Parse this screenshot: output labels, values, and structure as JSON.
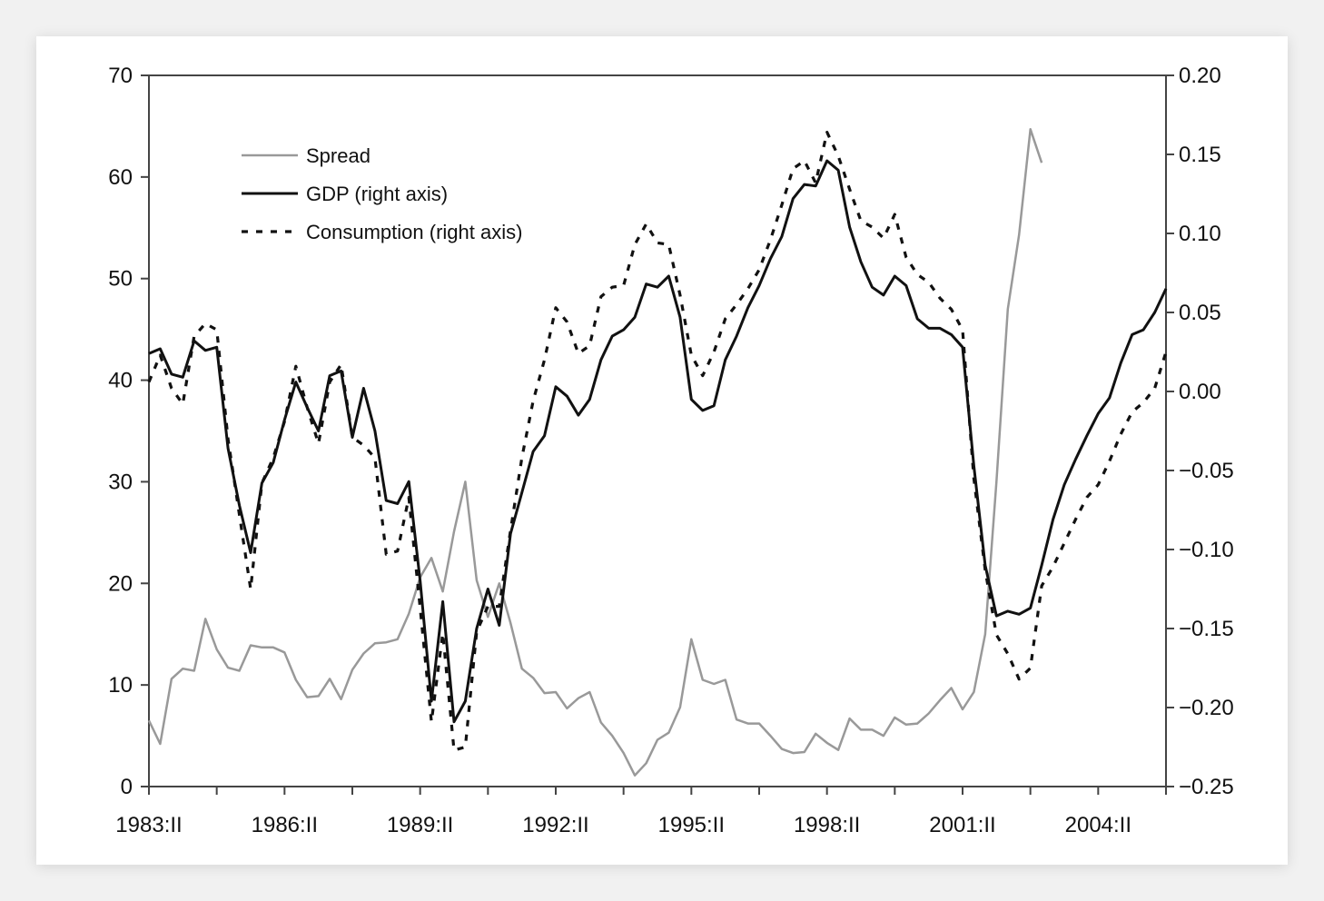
{
  "colors": {
    "spread": "#999999",
    "gdp": "#111111",
    "consumption": "#111111",
    "axis": "#444444",
    "background": "#ffffff"
  },
  "chart_data": {
    "type": "line",
    "title": "",
    "xlabel": "",
    "ylabel": "",
    "y2label": "",
    "grid": false,
    "legend_position": "top-left",
    "x_tick_labels": [
      "1983:II",
      "1986:II",
      "1989:II",
      "1992:II",
      "1995:II",
      "1998:II",
      "2001:II",
      "2004:II"
    ],
    "x_range": [
      "1983:II",
      "2005:IV"
    ],
    "ylim_left": [
      0,
      70
    ],
    "ylim_right": [
      -0.25,
      0.2
    ],
    "y_left_ticks": [
      "0",
      "10",
      "20",
      "30",
      "40",
      "50",
      "60",
      "70"
    ],
    "y_right_ticks": [
      "−0.25",
      "−0.20",
      "−0.15",
      "−0.10",
      "−0.05",
      "0.00",
      "0.05",
      "0.10",
      "0.15",
      "0.20"
    ],
    "series": [
      {
        "name": "Spread",
        "axis": "left",
        "style": "solid",
        "x": [
          "1983:II",
          "1983:III",
          "1983:IV",
          "1984:I",
          "1984:II",
          "1984:III",
          "1984:IV",
          "1985:I",
          "1985:II",
          "1985:III",
          "1985:IV",
          "1986:I",
          "1986:II",
          "1986:III",
          "1986:IV",
          "1987:I",
          "1987:II",
          "1987:III",
          "1987:IV",
          "1988:I",
          "1988:II",
          "1988:III",
          "1988:IV",
          "1989:I",
          "1989:II",
          "1989:III",
          "1989:IV",
          "1990:I",
          "1990:II",
          "1990:III",
          "1990:IV",
          "1991:I",
          "1991:II",
          "1991:III",
          "1991:IV",
          "1992:I",
          "1992:II",
          "1992:III",
          "1992:IV",
          "1993:I",
          "1993:II",
          "1993:III",
          "1993:IV",
          "1994:I",
          "1994:II",
          "1994:III",
          "1994:IV",
          "1995:I",
          "1995:II",
          "1995:III",
          "1995:IV",
          "1996:I",
          "1996:II",
          "1996:III",
          "1996:IV",
          "1997:I",
          "1997:II",
          "1997:III",
          "1997:IV",
          "1998:I",
          "1998:II",
          "1998:III",
          "1998:IV",
          "1999:I",
          "1999:II",
          "1999:III",
          "1999:IV",
          "2000:I",
          "2000:II",
          "2000:III",
          "2000:IV",
          "2001:I",
          "2001:II",
          "2001:III",
          "2001:IV",
          "2002:I",
          "2002:II",
          "2002:III",
          "2002:IV",
          "2003:I"
        ],
        "values": [
          6.5,
          4.2,
          10.6,
          11.6,
          11.4,
          16.5,
          13.5,
          11.7,
          11.4,
          13.9,
          13.7,
          13.7,
          13.2,
          10.5,
          8.8,
          8.9,
          10.6,
          8.6,
          11.5,
          13.1,
          14.1,
          14.2,
          14.5,
          17.0,
          20.6,
          22.5,
          19.2,
          25.1,
          30.0,
          20.3,
          16.7,
          20.0,
          16.1,
          11.6,
          10.7,
          9.2,
          9.3,
          7.7,
          8.7,
          9.3,
          6.3,
          5.0,
          3.3,
          1.1,
          2.3,
          4.6,
          5.3,
          7.8,
          14.5,
          10.5,
          10.1,
          10.5,
          6.6,
          6.2,
          6.2,
          5.0,
          3.7,
          3.3,
          3.4,
          5.2,
          4.3,
          3.6,
          6.7,
          5.6,
          5.6,
          5.0,
          6.8,
          6.1,
          6.2,
          7.2,
          8.5,
          9.7,
          7.6,
          9.3,
          15.0,
          30.0,
          47.0,
          54.3,
          64.7,
          61.4
        ]
      },
      {
        "name": "GDP (right axis)",
        "axis": "right",
        "style": "solid",
        "x": [
          "1983:II",
          "1983:III",
          "1983:IV",
          "1984:I",
          "1984:II",
          "1984:III",
          "1984:IV",
          "1985:I",
          "1985:II",
          "1985:III",
          "1985:IV",
          "1986:I",
          "1986:II",
          "1986:III",
          "1986:IV",
          "1987:I",
          "1987:II",
          "1987:III",
          "1987:IV",
          "1988:I",
          "1988:II",
          "1988:III",
          "1988:IV",
          "1989:I",
          "1989:II",
          "1989:III",
          "1989:IV",
          "1990:I",
          "1990:II",
          "1990:III",
          "1990:IV",
          "1991:I",
          "1991:II",
          "1991:III",
          "1991:IV",
          "1992:I",
          "1992:II",
          "1992:III",
          "1992:IV",
          "1993:I",
          "1993:II",
          "1993:III",
          "1993:IV",
          "1994:I",
          "1994:II",
          "1994:III",
          "1994:IV",
          "1995:I",
          "1995:II",
          "1995:III",
          "1995:IV",
          "1996:I",
          "1996:II",
          "1996:III",
          "1996:IV",
          "1997:I",
          "1997:II",
          "1997:III",
          "1997:IV",
          "1998:I",
          "1998:II",
          "1998:III",
          "1998:IV",
          "1999:I",
          "1999:II",
          "1999:III",
          "1999:IV",
          "2000:I",
          "2000:II",
          "2000:III",
          "2000:IV",
          "2001:I",
          "2001:II",
          "2001:III",
          "2001:IV",
          "2002:I",
          "2002:II",
          "2002:III",
          "2002:IV",
          "2003:I",
          "2003:II",
          "2003:III",
          "2003:IV",
          "2004:I",
          "2004:II",
          "2004:III",
          "2004:IV",
          "2005:I",
          "2005:II",
          "2005:III",
          "2005:IV"
        ],
        "values": [
          0.024,
          0.027,
          0.011,
          0.009,
          0.032,
          0.026,
          0.028,
          -0.036,
          -0.072,
          -0.102,
          -0.058,
          -0.045,
          -0.018,
          0.006,
          -0.01,
          -0.025,
          0.01,
          0.013,
          -0.029,
          0.002,
          -0.025,
          -0.069,
          -0.071,
          -0.057,
          -0.12,
          -0.196,
          -0.133,
          -0.209,
          -0.196,
          -0.15,
          -0.125,
          -0.148,
          -0.09,
          -0.064,
          -0.038,
          -0.028,
          0.003,
          -0.003,
          -0.015,
          -0.005,
          0.02,
          0.035,
          0.039,
          0.047,
          0.068,
          0.066,
          0.073,
          0.047,
          -0.005,
          -0.012,
          -0.009,
          0.02,
          0.035,
          0.053,
          0.067,
          0.084,
          0.098,
          0.122,
          0.131,
          0.13,
          0.146,
          0.14,
          0.104,
          0.082,
          0.066,
          0.061,
          0.073,
          0.067,
          0.046,
          0.04,
          0.04,
          0.036,
          0.028,
          -0.047,
          -0.11,
          -0.142,
          -0.139,
          -0.141,
          -0.137,
          -0.11,
          -0.081,
          -0.059,
          -0.043,
          -0.028,
          -0.014,
          -0.004,
          0.018,
          0.036,
          0.039,
          0.05,
          0.065
        ]
      },
      {
        "name": "Consumption (right axis)",
        "axis": "right",
        "style": "dashed",
        "x": [
          "1983:II",
          "1983:III",
          "1983:IV",
          "1984:I",
          "1984:II",
          "1984:III",
          "1984:IV",
          "1985:I",
          "1985:II",
          "1985:III",
          "1985:IV",
          "1986:I",
          "1986:II",
          "1986:III",
          "1986:IV",
          "1987:I",
          "1987:II",
          "1987:III",
          "1987:IV",
          "1988:I",
          "1988:II",
          "1988:III",
          "1988:IV",
          "1989:I",
          "1989:II",
          "1989:III",
          "1989:IV",
          "1990:I",
          "1990:II",
          "1990:III",
          "1990:IV",
          "1991:I",
          "1991:II",
          "1991:III",
          "1991:IV",
          "1992:I",
          "1992:II",
          "1992:III",
          "1992:IV",
          "1993:I",
          "1993:II",
          "1993:III",
          "1993:IV",
          "1994:I",
          "1994:II",
          "1994:III",
          "1994:IV",
          "1995:I",
          "1995:II",
          "1995:III",
          "1995:IV",
          "1996:I",
          "1996:II",
          "1996:III",
          "1996:IV",
          "1997:I",
          "1997:II",
          "1997:III",
          "1997:IV",
          "1998:I",
          "1998:II",
          "1998:III",
          "1998:IV",
          "1999:I",
          "1999:II",
          "1999:III",
          "1999:IV",
          "2000:I",
          "2000:II",
          "2000:III",
          "2000:IV",
          "2001:I",
          "2001:II",
          "2001:III",
          "2001:IV",
          "2002:I",
          "2002:II",
          "2002:III",
          "2002:IV",
          "2003:I",
          "2003:II",
          "2003:III",
          "2003:IV",
          "2004:I",
          "2004:II",
          "2004:III",
          "2004:IV",
          "2005:I",
          "2005:II",
          "2005:III",
          "2005:IV"
        ],
        "values": [
          0.006,
          0.023,
          0.002,
          -0.008,
          0.035,
          0.043,
          0.039,
          -0.03,
          -0.078,
          -0.125,
          -0.058,
          -0.042,
          -0.019,
          0.016,
          -0.01,
          -0.033,
          0.006,
          0.017,
          -0.029,
          -0.034,
          -0.042,
          -0.103,
          -0.101,
          -0.067,
          -0.137,
          -0.209,
          -0.153,
          -0.227,
          -0.225,
          -0.152,
          -0.136,
          -0.136,
          -0.088,
          -0.042,
          -0.006,
          0.02,
          0.053,
          0.044,
          0.024,
          0.029,
          0.06,
          0.066,
          0.067,
          0.093,
          0.106,
          0.094,
          0.093,
          0.061,
          0.023,
          0.01,
          0.025,
          0.046,
          0.055,
          0.065,
          0.077,
          0.096,
          0.118,
          0.141,
          0.146,
          0.132,
          0.164,
          0.149,
          0.128,
          0.108,
          0.104,
          0.097,
          0.112,
          0.085,
          0.074,
          0.069,
          0.059,
          0.052,
          0.039,
          -0.055,
          -0.113,
          -0.154,
          -0.166,
          -0.182,
          -0.175,
          -0.123,
          -0.111,
          -0.096,
          -0.081,
          -0.067,
          -0.059,
          -0.044,
          -0.027,
          -0.013,
          -0.007,
          0.002,
          0.025
        ]
      }
    ]
  }
}
